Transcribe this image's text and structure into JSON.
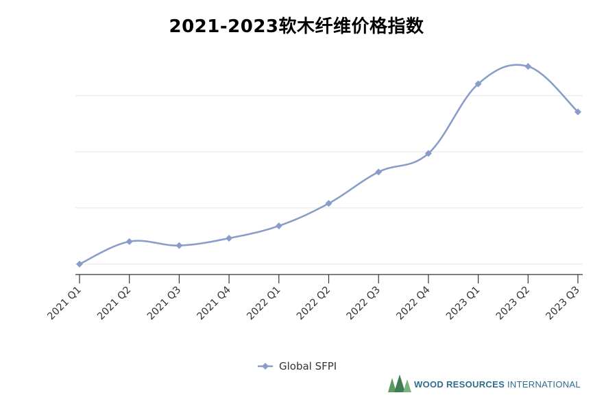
{
  "chart_data": {
    "type": "line",
    "title": "2021-2023软木纤维价格指数",
    "categories": [
      "2021 Q1",
      "2021 Q2",
      "2021 Q3",
      "2021 Q4",
      "2022 Q1",
      "2022 Q2",
      "2022 Q3",
      "2022 Q4",
      "2023 Q1",
      "2023 Q2",
      "2023 Q3"
    ],
    "series": [
      {
        "name": "Global SFPI",
        "values": [
          0.0,
          0.4,
          0.33,
          0.46,
          0.68,
          1.08,
          1.64,
          1.97,
          3.21,
          3.52,
          2.71
        ]
      }
    ],
    "ylim": [
      -0.15,
      3.85
    ],
    "gridlines_y": [
      0,
      1,
      2,
      3
    ],
    "grid": true,
    "y_tick_labels_visible": false,
    "legend": "bottom-center",
    "series_color": "#8a9cc9"
  },
  "logo": {
    "text_main": "WOOD RESOURCES ",
    "text_tail": "INTERNATIONAL",
    "primary_color": "#2e6b8c",
    "tree_color": "#5b9a63"
  }
}
